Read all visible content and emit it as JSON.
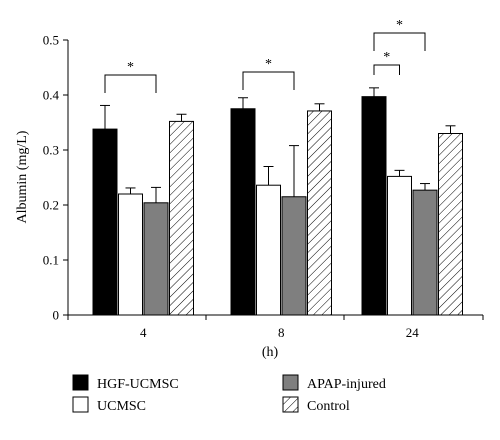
{
  "chart_data": {
    "type": "bar",
    "xlabel": "(h)",
    "ylabel": "Albumin (mg/L)",
    "ylim": [
      0,
      0.5
    ],
    "yticks": [
      "0",
      "0.1",
      "0.2",
      "0.3",
      "0.4",
      "0.5"
    ],
    "grid": false,
    "legend_position": "bottom",
    "categories": [
      "4",
      "8",
      "24"
    ],
    "series": [
      {
        "name": "HGF-UCMSC",
        "fill": "black",
        "values": [
          0.338,
          0.375,
          0.397
        ],
        "errors": [
          0.043,
          0.02,
          0.016
        ]
      },
      {
        "name": "UCMSC",
        "fill": "white",
        "values": [
          0.22,
          0.236,
          0.252
        ],
        "errors": [
          0.011,
          0.034,
          0.011
        ]
      },
      {
        "name": "APAP-injured",
        "fill": "gray",
        "values": [
          0.204,
          0.215,
          0.227
        ],
        "errors": [
          0.028,
          0.093,
          0.012
        ]
      },
      {
        "name": "Control",
        "fill": "hatched",
        "values": [
          0.352,
          0.371,
          0.33
        ],
        "errors": [
          0.013,
          0.013,
          0.014
        ]
      }
    ],
    "significance": [
      {
        "group": "4",
        "from_series": 0,
        "to_series": 2,
        "label": "*"
      },
      {
        "group": "8",
        "from_series": 0,
        "to_series": 2,
        "label": "*"
      },
      {
        "group": "24",
        "from_series": 0,
        "to_series": 1,
        "label": "*"
      },
      {
        "group": "24",
        "from_series": 0,
        "to_series": 2,
        "label": "*"
      }
    ]
  },
  "colors": {
    "hgf": "#000000",
    "ucmsc": "#ffffff",
    "apap": "#7f7f7f",
    "control_hatch": "#000000"
  }
}
